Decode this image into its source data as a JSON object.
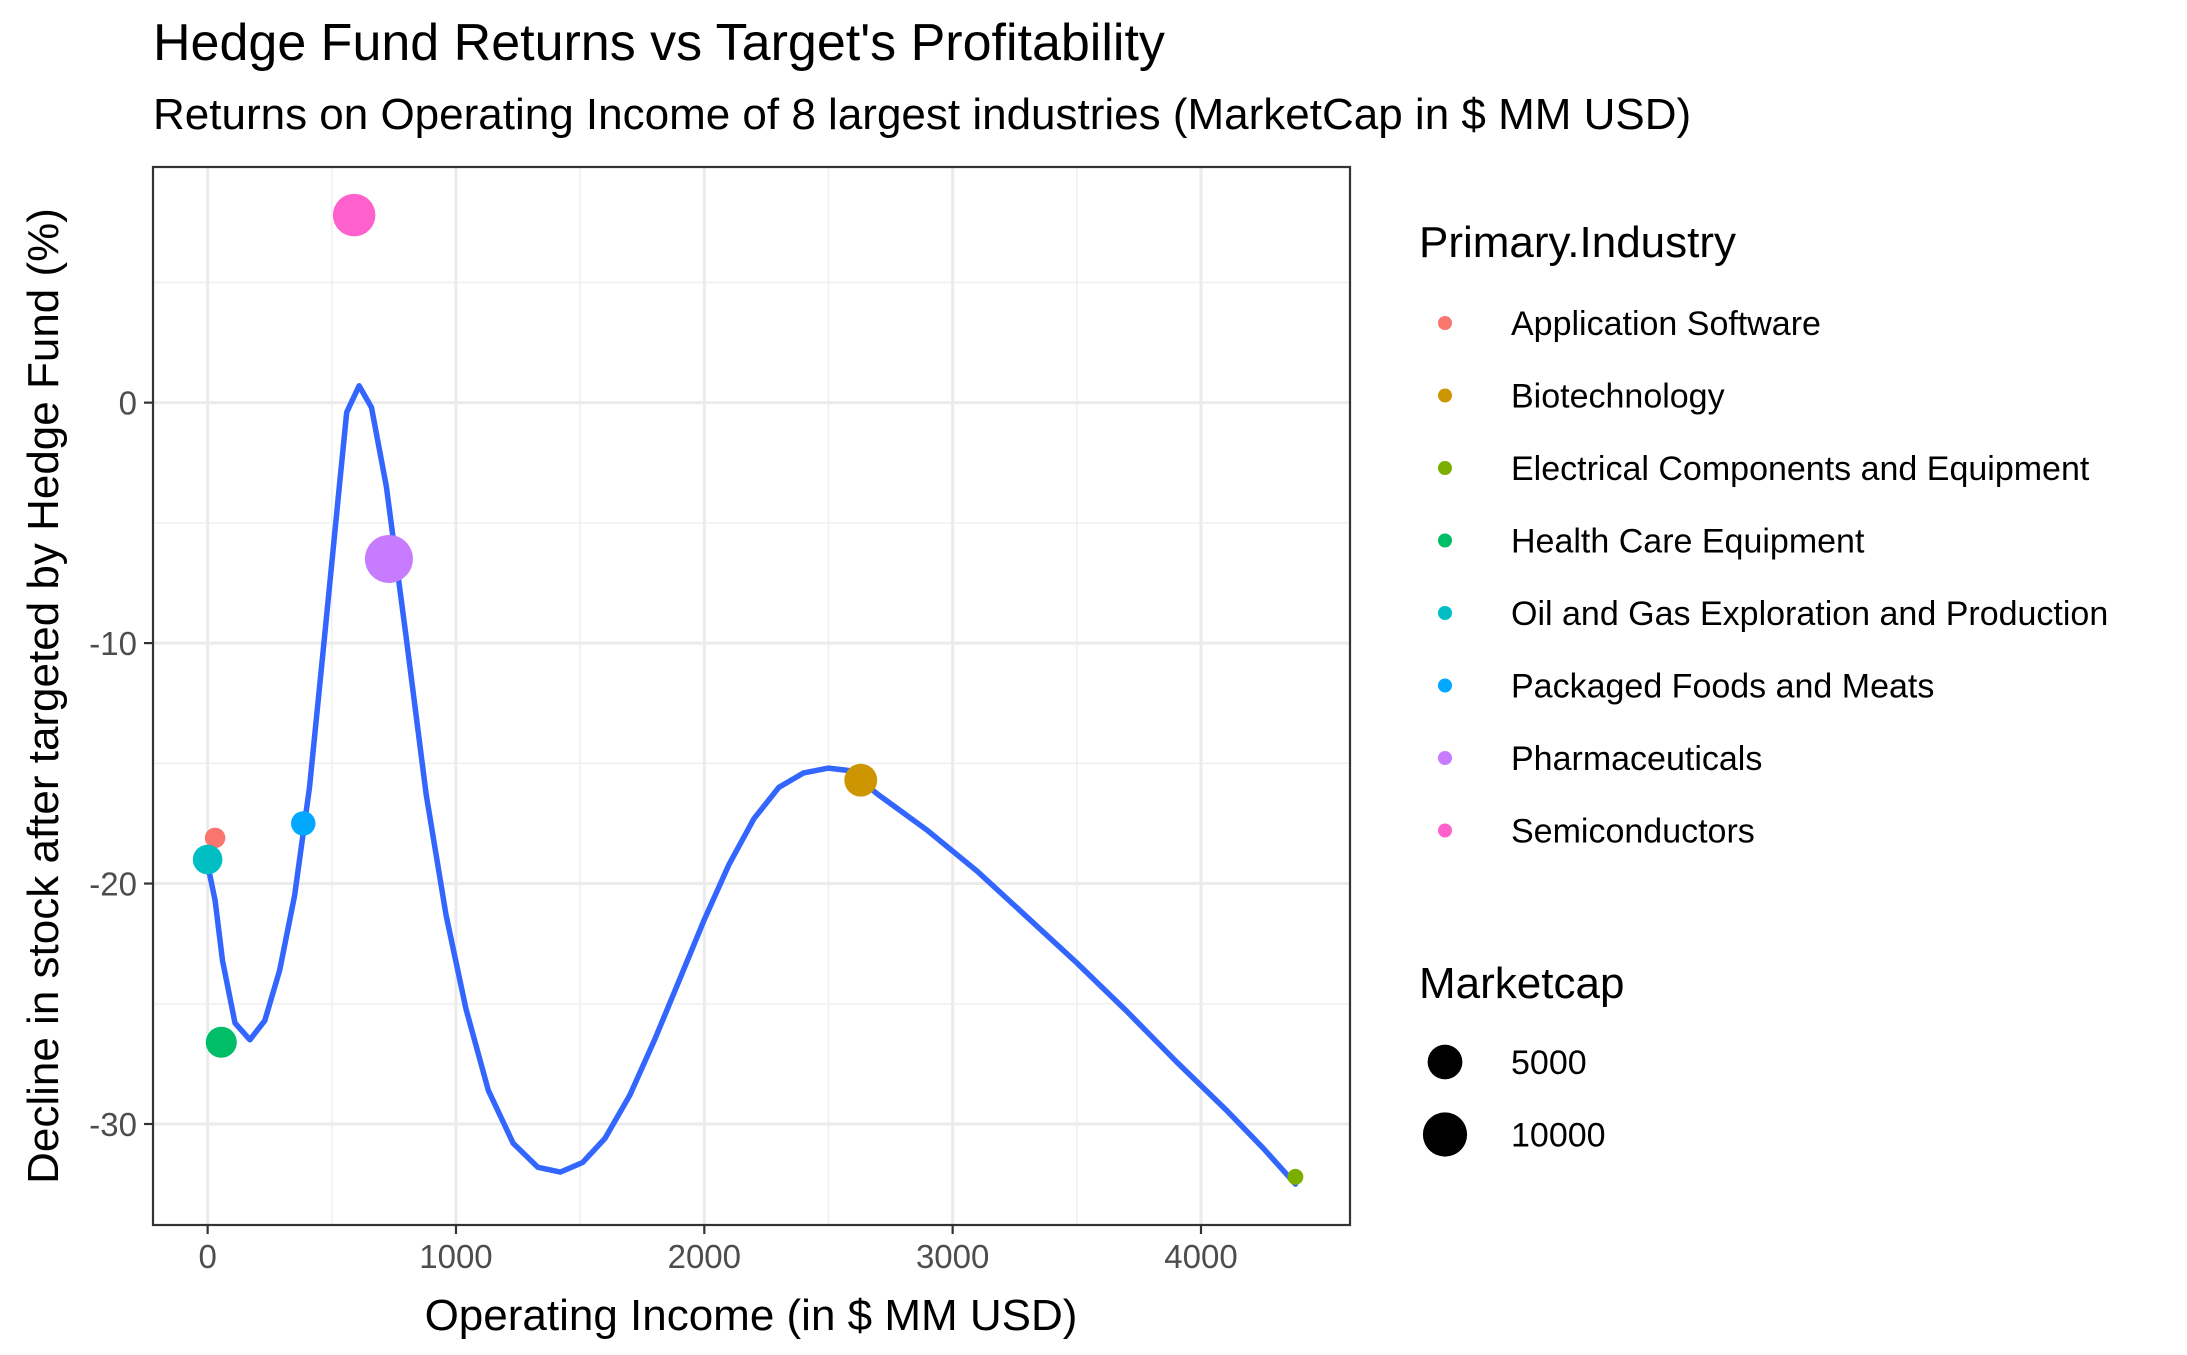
{
  "chart_data": {
    "type": "scatter",
    "title": "Hedge Fund Returns vs Target's Profitability",
    "subtitle": "Returns on Operating Income of 8 largest industries (MarketCap in $ MM USD)",
    "xlabel": "Operating Income (in $ MM USD)",
    "ylabel": "Decline in stock after targeted by Hedge Fund (%)",
    "xlim": [
      -220,
      4600
    ],
    "ylim": [
      -34.2,
      9.8
    ],
    "xticks": [
      0,
      1000,
      2000,
      3000,
      4000
    ],
    "xtick_labels": [
      "0",
      "1000",
      "2000",
      "3000",
      "4000"
    ],
    "yticks": [
      -30,
      -20,
      -10,
      0
    ],
    "ytick_labels": [
      "-30",
      "-20",
      "-10",
      "0"
    ],
    "grid": true,
    "legend_position": "right",
    "color_legend": {
      "title": "Primary.Industry",
      "entries": [
        {
          "label": "Application Software",
          "color": "#F8766D"
        },
        {
          "label": "Biotechnology",
          "color": "#CD9600"
        },
        {
          "label": "Electrical Components and Equipment",
          "color": "#7CAE00"
        },
        {
          "label": "Health Care Equipment",
          "color": "#00BE67"
        },
        {
          "label": "Oil and Gas Exploration and Production",
          "color": "#00BFC4"
        },
        {
          "label": "Packaged Foods and Meats",
          "color": "#00A9FF"
        },
        {
          "label": "Pharmaceuticals",
          "color": "#C77CFF"
        },
        {
          "label": "Semiconductors",
          "color": "#FF61CC"
        }
      ]
    },
    "size_legend": {
      "title": "Marketcap",
      "entries": [
        {
          "label": "5000",
          "value": 5000
        },
        {
          "label": "10000",
          "value": 10000
        }
      ]
    },
    "points": [
      {
        "industry": "Application Software",
        "x": 30,
        "y": -18.1,
        "marketcap": 700
      },
      {
        "industry": "Biotechnology",
        "x": 2630,
        "y": -15.7,
        "marketcap": 4200
      },
      {
        "industry": "Electrical Components and Equipment",
        "x": 4380,
        "y": -32.2,
        "marketcap": 150
      },
      {
        "industry": "Health Care Equipment",
        "x": 55,
        "y": -26.6,
        "marketcap": 3500
      },
      {
        "industry": "Oil and Gas Exploration and Production",
        "x": 0,
        "y": -19.0,
        "marketcap": 3000
      },
      {
        "industry": "Packaged Foods and Meats",
        "x": 385,
        "y": -17.5,
        "marketcap": 1500
      },
      {
        "industry": "Pharmaceuticals",
        "x": 730,
        "y": -6.5,
        "marketcap": 12500
      },
      {
        "industry": "Semiconductors",
        "x": 590,
        "y": 7.8,
        "marketcap": 9000
      }
    ],
    "trend_line": {
      "color": "#3366FF",
      "points": [
        [
          0,
          -19.2
        ],
        [
          30,
          -20.7
        ],
        [
          60,
          -23.2
        ],
        [
          110,
          -25.8
        ],
        [
          170,
          -26.5
        ],
        [
          230,
          -25.7
        ],
        [
          290,
          -23.6
        ],
        [
          350,
          -20.5
        ],
        [
          410,
          -16.0
        ],
        [
          470,
          -9.8
        ],
        [
          530,
          -3.5
        ],
        [
          560,
          -0.4
        ],
        [
          610,
          0.7
        ],
        [
          660,
          -0.2
        ],
        [
          720,
          -3.5
        ],
        [
          800,
          -9.8
        ],
        [
          880,
          -16.3
        ],
        [
          960,
          -21.3
        ],
        [
          1040,
          -25.2
        ],
        [
          1130,
          -28.6
        ],
        [
          1230,
          -30.8
        ],
        [
          1330,
          -31.8
        ],
        [
          1420,
          -32.0
        ],
        [
          1510,
          -31.6
        ],
        [
          1600,
          -30.6
        ],
        [
          1700,
          -28.8
        ],
        [
          1800,
          -26.5
        ],
        [
          1900,
          -24.0
        ],
        [
          2000,
          -21.5
        ],
        [
          2100,
          -19.2
        ],
        [
          2200,
          -17.3
        ],
        [
          2300,
          -16.0
        ],
        [
          2400,
          -15.4
        ],
        [
          2500,
          -15.2
        ],
        [
          2580,
          -15.3
        ],
        [
          2700,
          -16.3
        ],
        [
          2900,
          -17.8
        ],
        [
          3100,
          -19.5
        ],
        [
          3300,
          -21.4
        ],
        [
          3500,
          -23.3
        ],
        [
          3700,
          -25.3
        ],
        [
          3900,
          -27.4
        ],
        [
          4100,
          -29.4
        ],
        [
          4250,
          -31.0
        ],
        [
          4380,
          -32.5
        ]
      ]
    }
  }
}
